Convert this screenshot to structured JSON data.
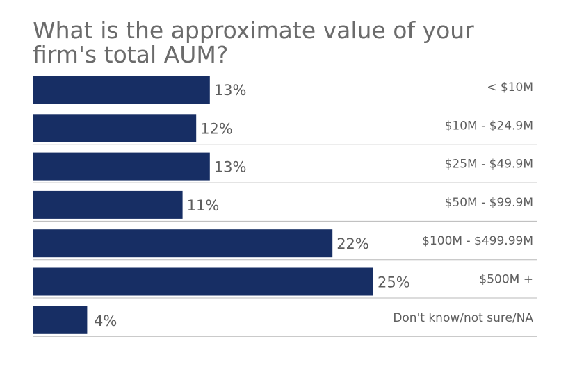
{
  "chart_data": {
    "type": "bar",
    "orientation": "horizontal",
    "title_lines": [
      "What is the approximate value of your",
      "firm's total AUM?"
    ],
    "categories": [
      "< $10M",
      "$10M - $24.9M",
      "$25M - $49.9M",
      "$50M - $99.9M",
      "$100M - $499.99M",
      "$500M +",
      "Don't know/not sure/NA"
    ],
    "values": [
      13,
      12,
      13,
      11,
      22,
      25,
      4
    ],
    "value_labels": [
      "13%",
      "12%",
      "13%",
      "11%",
      "22%",
      "25%",
      "4%"
    ],
    "unit": "%",
    "xlim": [
      0,
      37
    ],
    "bar_color": "#172e64",
    "grid": false,
    "legend": "none"
  }
}
